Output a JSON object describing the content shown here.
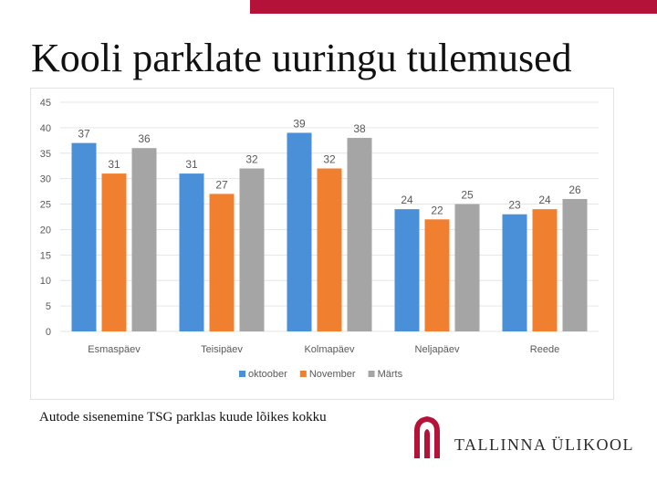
{
  "slide": {
    "title": "Kooli parklate uuringu tulemused",
    "caption": "Autode sisenemine TSG parklas kuude lõikes kokku",
    "logo_text": "TALLINNA ÜLIKOOL",
    "accent_color": "#b5123a"
  },
  "chart_data": {
    "type": "bar",
    "categories": [
      "Esmaspäev",
      "Teisipäev",
      "Kolmapäev",
      "Neljapäev",
      "Reede"
    ],
    "series": [
      {
        "name": "oktoober",
        "color": "#4a90d9",
        "values": [
          37,
          31,
          39,
          24,
          23
        ]
      },
      {
        "name": "November",
        "color": "#f07f30",
        "values": [
          31,
          27,
          32,
          22,
          24
        ]
      },
      {
        "name": "Märts",
        "color": "#a5a5a5",
        "values": [
          36,
          32,
          38,
          25,
          26
        ]
      }
    ],
    "ylim": [
      0,
      45
    ],
    "yticks": [
      0,
      5,
      10,
      15,
      20,
      25,
      30,
      35,
      40,
      45
    ],
    "grid": true,
    "legend_position": "bottom",
    "data_labels": true
  }
}
